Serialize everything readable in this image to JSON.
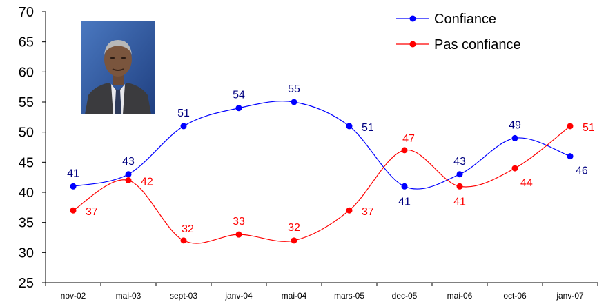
{
  "chart_data": {
    "type": "line",
    "categories": [
      "nov-02",
      "mai-03",
      "sept-03",
      "janv-04",
      "mai-04",
      "mars-05",
      "dec-05",
      "mai-06",
      "oct-06",
      "janv-07"
    ],
    "series": [
      {
        "name": "Confiance",
        "color": "#0000ff",
        "label_color": "#000080",
        "values": [
          41,
          43,
          51,
          54,
          55,
          51,
          41,
          43,
          49,
          46
        ]
      },
      {
        "name": "Pas confiance",
        "color": "#ff0000",
        "label_color": "#ff0000",
        "values": [
          37,
          42,
          32,
          33,
          32,
          37,
          47,
          41,
          44,
          51
        ]
      }
    ],
    "yticks": [
      25,
      30,
      35,
      40,
      45,
      50,
      55,
      60,
      65,
      70
    ],
    "ylim": [
      25,
      70
    ],
    "smooth": true,
    "legend_position": "top-right",
    "title": "",
    "xlabel": "",
    "ylabel": "",
    "inset_image": "portrait-photo"
  }
}
